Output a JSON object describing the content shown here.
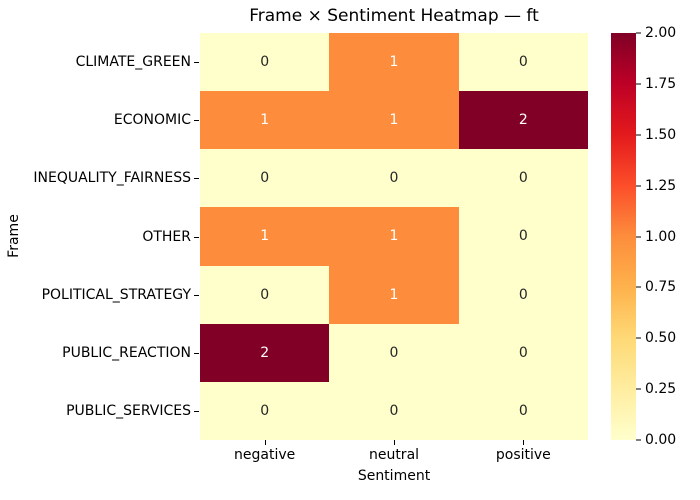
{
  "title": "Frame × Sentiment Heatmap — ft",
  "chart_data": {
    "type": "heatmap",
    "title": "Frame × Sentiment Heatmap — ft",
    "xlabel": "Sentiment",
    "ylabel": "Frame",
    "columns": [
      "negative",
      "neutral",
      "positive"
    ],
    "rows": [
      "CLIMATE_GREEN",
      "ECONOMIC",
      "INEQUALITY_FAIRNESS",
      "OTHER",
      "POLITICAL_STRATEGY",
      "PUBLIC_REACTION",
      "PUBLIC_SERVICES"
    ],
    "matrix": [
      [
        0,
        1,
        0
      ],
      [
        1,
        1,
        2
      ],
      [
        0,
        0,
        0
      ],
      [
        1,
        1,
        0
      ],
      [
        0,
        1,
        0
      ],
      [
        2,
        0,
        0
      ],
      [
        0,
        0,
        0
      ]
    ],
    "vmin": 0,
    "vmax": 2,
    "colormap": "YlOrRd",
    "grid": false,
    "legend_position": "right-colorbar",
    "value_colors": {
      "0": "#ffffcc",
      "1": "#fd8d3c",
      "2": "#800026"
    },
    "annot_text_colors": {
      "0": "#262626",
      "1": "#ffffff",
      "2": "#ffffff"
    },
    "colorbar": {
      "ticks": [
        "0.00",
        "0.25",
        "0.50",
        "0.75",
        "1.00",
        "1.25",
        "1.50",
        "1.75",
        "2.00"
      ],
      "gradient_stops": [
        "#ffffcc",
        "#ffeda0",
        "#fed976",
        "#feb24c",
        "#fd8d3c",
        "#fc4e2a",
        "#e31a1c",
        "#bd0026",
        "#800026"
      ]
    }
  }
}
